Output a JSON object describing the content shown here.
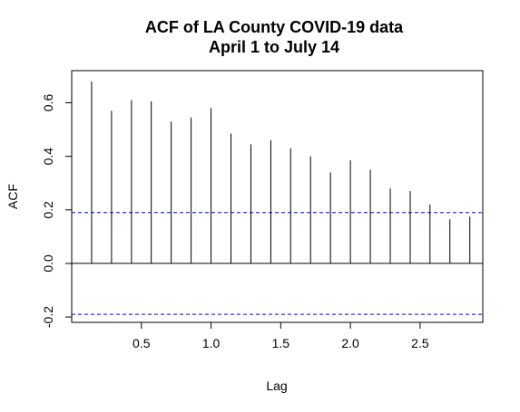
{
  "chart_data": {
    "type": "bar",
    "title_lines": [
      "ACF of LA County COVID-19 data",
      "April 1 to July 14"
    ],
    "xlabel": "Lag",
    "ylabel": "ACF",
    "xlim": [
      0.0,
      2.95
    ],
    "ylim": [
      -0.22,
      0.72
    ],
    "xticks": [
      0.5,
      1.0,
      1.5,
      2.0,
      2.5
    ],
    "xtick_labels": [
      "0.5",
      "1.0",
      "1.5",
      "2.0",
      "2.5"
    ],
    "yticks": [
      -0.2,
      0.0,
      0.2,
      0.4,
      0.6
    ],
    "ytick_labels": [
      "-0.2",
      "0.0",
      "0.2",
      "0.4",
      "0.6"
    ],
    "ci": 0.19,
    "ci_color": "#0000ff",
    "zero_line": 0,
    "x": [
      0.143,
      0.286,
      0.429,
      0.571,
      0.714,
      0.857,
      1.0,
      1.143,
      1.286,
      1.429,
      1.571,
      1.714,
      1.857,
      2.0,
      2.143,
      2.286,
      2.429,
      2.571,
      2.714,
      2.857
    ],
    "values": [
      0.68,
      0.57,
      0.61,
      0.605,
      0.53,
      0.545,
      0.58,
      0.485,
      0.445,
      0.46,
      0.43,
      0.4,
      0.34,
      0.385,
      0.35,
      0.28,
      0.27,
      0.22,
      0.165,
      0.175
    ]
  }
}
